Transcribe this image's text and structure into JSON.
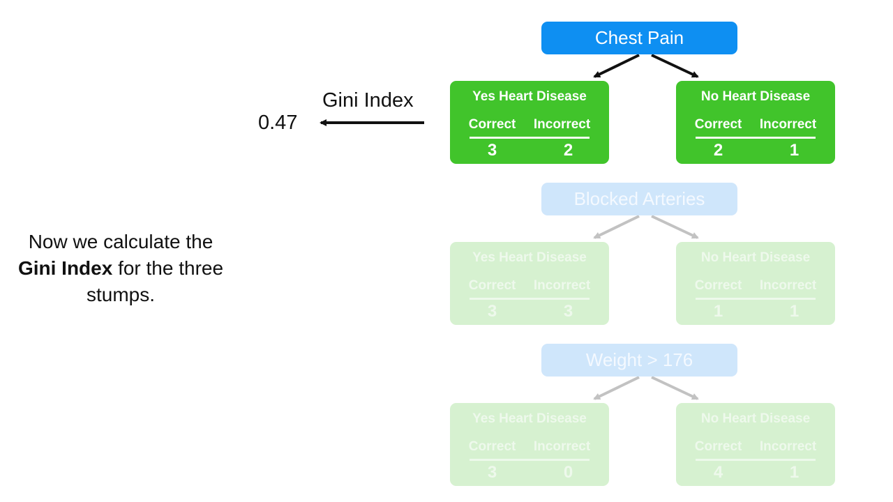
{
  "stumps": [
    {
      "root_label": "Chest Pain",
      "state": "active",
      "leaves": [
        {
          "title": "Yes Heart Disease",
          "correct_label": "Correct",
          "incorrect_label": "Incorrect",
          "correct": "3",
          "incorrect": "2"
        },
        {
          "title": "No Heart Disease",
          "correct_label": "Correct",
          "incorrect_label": "Incorrect",
          "correct": "2",
          "incorrect": "1"
        }
      ]
    },
    {
      "root_label": "Blocked Arteries",
      "state": "faded",
      "leaves": [
        {
          "title": "Yes Heart Disease",
          "correct_label": "Correct",
          "incorrect_label": "Incorrect",
          "correct": "3",
          "incorrect": "3"
        },
        {
          "title": "No Heart Disease",
          "correct_label": "Correct",
          "incorrect_label": "Incorrect",
          "correct": "1",
          "incorrect": "1"
        }
      ]
    },
    {
      "root_label": "Weight > 176",
      "state": "faded",
      "leaves": [
        {
          "title": "Yes Heart Disease",
          "correct_label": "Correct",
          "incorrect_label": "Incorrect",
          "correct": "3",
          "incorrect": "0"
        },
        {
          "title": "No Heart Disease",
          "correct_label": "Correct",
          "incorrect_label": "Incorrect",
          "correct": "4",
          "incorrect": "1"
        }
      ]
    }
  ],
  "gini": {
    "label": "Gini Index",
    "value": "0.47"
  },
  "caption": {
    "line1": "Now we calculate the",
    "bold": "Gini Index",
    "rest": " for the three",
    "line3": "stumps."
  },
  "colors": {
    "root_active": "#0e8ff2",
    "leaf_active": "#41c42b",
    "root_faded": "#cfe6fb",
    "leaf_faded": "#d6f1d0"
  }
}
